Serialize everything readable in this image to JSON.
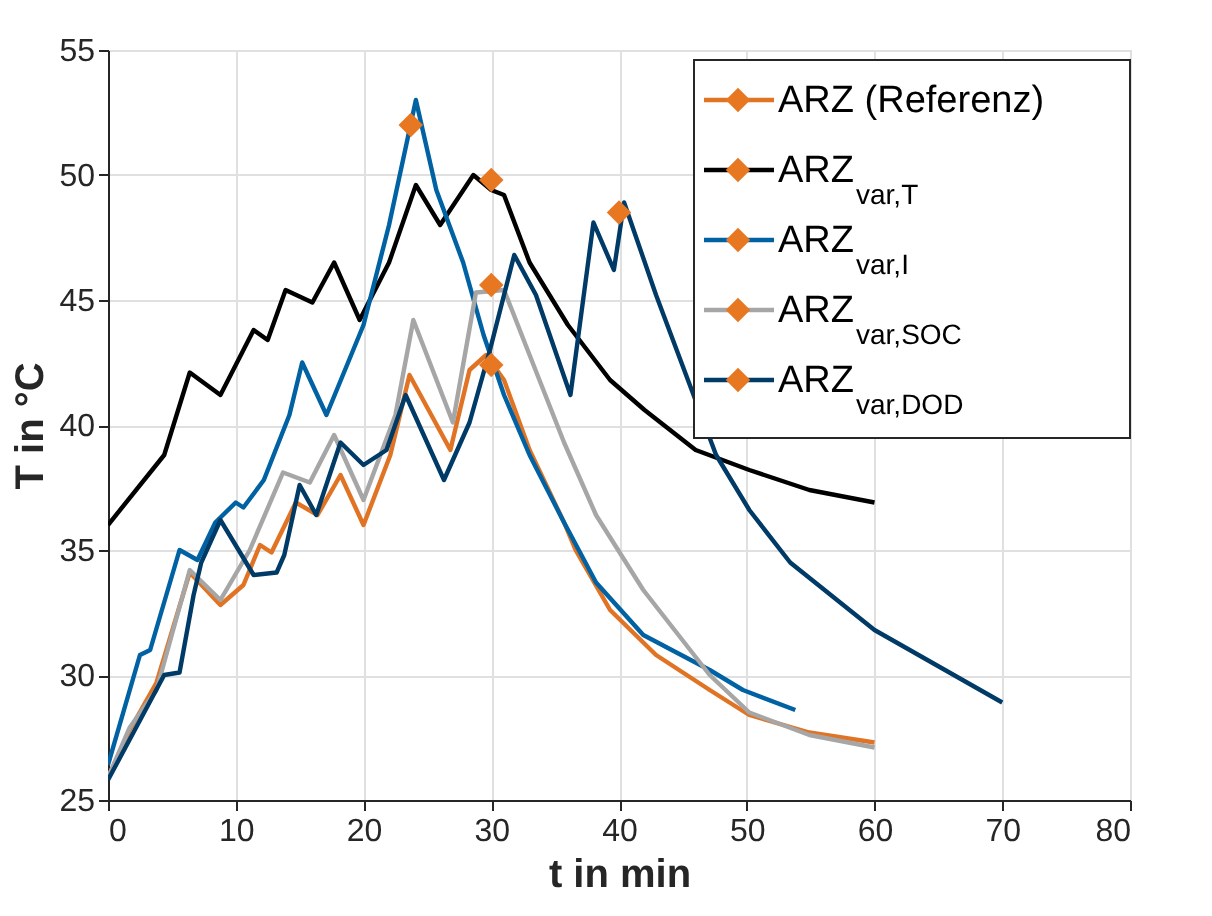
{
  "chart_data": {
    "type": "line",
    "xlabel": "t in min",
    "ylabel": "T in °C",
    "xlim": [
      0,
      80
    ],
    "xticks": [
      0,
      10,
      20,
      30,
      40,
      50,
      60,
      70,
      80
    ],
    "ylim": [
      25,
      55
    ],
    "yticks": [
      25,
      30,
      35,
      40,
      45,
      50,
      55
    ],
    "grid": true,
    "legend": "top right",
    "line_style": "solid",
    "series": [
      {
        "name": "ARZ  (Referenz)",
        "color": "#e07424",
        "x": [
          0,
          1.7,
          3.8,
          6.4,
          8.8,
          10.6,
          11.9,
          12.8,
          14.7,
          16.4,
          18.2,
          20,
          22.1,
          23.6,
          26.8,
          28.3,
          29.6,
          31,
          33,
          35.7,
          36.6,
          39.3,
          42.9,
          47.1,
          50.2,
          54.9,
          60
        ],
        "values": [
          25.9,
          27.8,
          29.7,
          34.1,
          32.8,
          33.6,
          35.2,
          34.9,
          36.9,
          36.4,
          38,
          36,
          38.8,
          42,
          39,
          42.2,
          42.8,
          41.8,
          39,
          36.1,
          35,
          32.6,
          30.8,
          29.4,
          28.4,
          27.7,
          27.3
        ]
      },
      {
        "name": "ARZ$_{var,T}$",
        "color": "#000000",
        "x": [
          0,
          4.4,
          6.4,
          8.8,
          11.4,
          12.5,
          13.9,
          16,
          17.7,
          19.7,
          22,
          24.1,
          26,
          28.6,
          30,
          31,
          33,
          36,
          39.3,
          42,
          46,
          50.2,
          54.9,
          60
        ],
        "values": [
          36,
          38.8,
          42.1,
          41.2,
          43.8,
          43.4,
          45.4,
          44.9,
          46.5,
          44.2,
          46.5,
          49.6,
          48,
          50,
          49.4,
          49.2,
          46.5,
          44,
          41.8,
          40.6,
          39,
          38.2,
          37.4,
          36.9
        ]
      },
      {
        "name": "ARZ$_{var,I}$",
        "color": "#0062a3",
        "x": [
          0,
          2.5,
          3.3,
          5.6,
          7,
          8.4,
          10,
          10.6,
          12.2,
          14.2,
          15.2,
          17.1,
          20,
          22,
          24.1,
          25.7,
          27.8,
          29.4,
          31,
          33,
          35.7,
          38.2,
          41.9,
          47.1,
          49.7,
          53.8
        ],
        "values": [
          26.4,
          30.8,
          31,
          35,
          34.6,
          36.1,
          36.9,
          36.7,
          37.8,
          40.4,
          42.5,
          40.4,
          44,
          48,
          53,
          49.4,
          46.5,
          43.6,
          41.2,
          38.8,
          36.1,
          33.7,
          31.6,
          30.2,
          29.4,
          28.6
        ]
      },
      {
        "name": "ARZ$_{var,SOC}$",
        "color": "#a6a6a6",
        "x": [
          0,
          1.7,
          3.8,
          6.4,
          8.8,
          11.1,
          13.7,
          15.8,
          17.7,
          20,
          22.5,
          23.9,
          27,
          28.8,
          31,
          33,
          35.7,
          38.2,
          41.9,
          47.1,
          50.2,
          54.9,
          60
        ],
        "values": [
          25.9,
          27.9,
          29.4,
          34.2,
          33,
          35,
          38.1,
          37.7,
          39.6,
          37,
          40.4,
          44.2,
          40.1,
          45.3,
          45.4,
          42.8,
          39.3,
          36.4,
          33.4,
          30,
          28.5,
          27.6,
          27.1
        ]
      },
      {
        "name": "ARZ$_{var,DOD}$",
        "color": "#003a66",
        "x": [
          0,
          4.4,
          5.6,
          6.7,
          7.3,
          8.8,
          11.4,
          13.2,
          13.8,
          15,
          16.3,
          18.2,
          20,
          21.8,
          23.3,
          26.3,
          28.3,
          29.9,
          31.8,
          33.5,
          36.2,
          38,
          39.6,
          40.4,
          42.9,
          46,
          47.6,
          50.2,
          53.4,
          60,
          70
        ],
        "values": [
          25.8,
          30,
          30.1,
          33.2,
          34.5,
          36.2,
          34,
          34.1,
          34.8,
          37.6,
          36.4,
          39.3,
          38.4,
          39,
          41.2,
          37.8,
          40.1,
          43,
          46.8,
          45.2,
          41.2,
          48.1,
          46.2,
          48.9,
          45.2,
          null,
          38.8,
          36.6,
          34.5,
          31.8,
          28.9
        ]
      },
      {
        "type": "scatter",
        "color": "#e87722",
        "marker": "diamond",
        "x": [
          23.7,
          30,
          30,
          30,
          40
        ],
        "values": [
          52,
          49.8,
          45.6,
          42.4,
          48.5
        ]
      }
    ]
  }
}
